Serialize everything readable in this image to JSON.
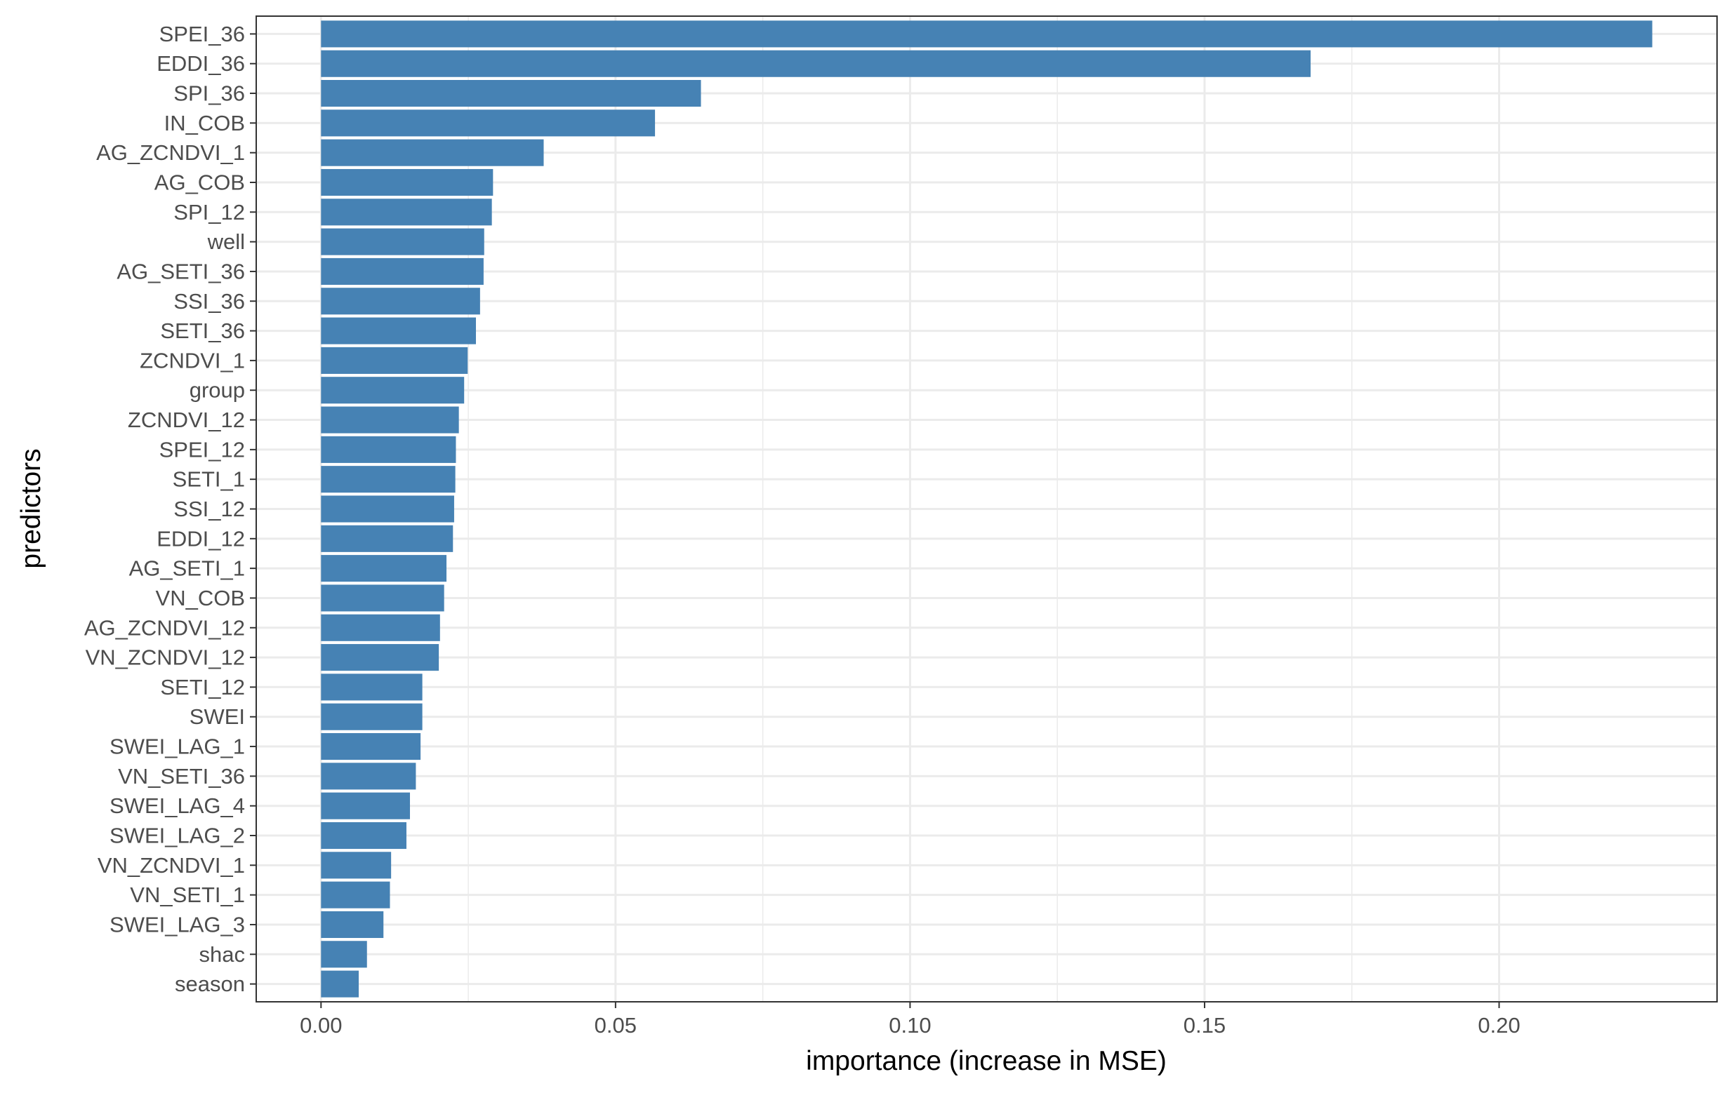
{
  "chart_data": {
    "type": "bar",
    "orientation": "horizontal",
    "xlabel": "importance (increase in MSE)",
    "ylabel": "predictors",
    "xlim": [
      -0.011,
      0.237
    ],
    "xticks": [
      0.0,
      0.05,
      0.1,
      0.15,
      0.2
    ],
    "xtick_labels": [
      "0.00",
      "0.05",
      "0.10",
      "0.15",
      "0.20"
    ],
    "grid": true,
    "legend": "none",
    "bar_color": "#4682b4",
    "categories": [
      "SPEI_36",
      "EDDI_36",
      "SPI_36",
      "IN_COB",
      "AG_ZCNDVI_1",
      "AG_COB",
      "SPI_12",
      "well",
      "AG_SETI_36",
      "SSI_36",
      "SETI_36",
      "ZCNDVI_1",
      "group",
      "ZCNDVI_12",
      "SPEI_12",
      "SETI_1",
      "SSI_12",
      "EDDI_12",
      "AG_SETI_1",
      "VN_COB",
      "AG_ZCNDVI_12",
      "VN_ZCNDVI_12",
      "SETI_12",
      "SWEI",
      "SWEI_LAG_1",
      "VN_SETI_36",
      "SWEI_LAG_4",
      "SWEI_LAG_2",
      "VN_ZCNDVI_1",
      "VN_SETI_1",
      "SWEI_LAG_3",
      "shac",
      "season"
    ],
    "values": [
      0.226,
      0.168,
      0.0645,
      0.0567,
      0.0378,
      0.0292,
      0.029,
      0.0277,
      0.0276,
      0.027,
      0.0263,
      0.0249,
      0.0243,
      0.0234,
      0.0229,
      0.0228,
      0.0226,
      0.0224,
      0.0213,
      0.0209,
      0.0202,
      0.02,
      0.0172,
      0.0172,
      0.0169,
      0.0161,
      0.0151,
      0.0145,
      0.0119,
      0.0117,
      0.0106,
      0.0078,
      0.0064
    ]
  }
}
